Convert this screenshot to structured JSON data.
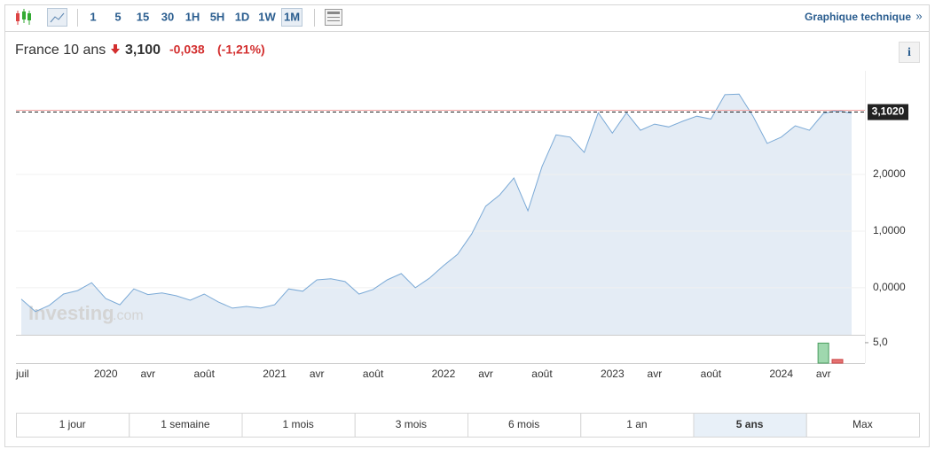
{
  "toolbar": {
    "intervals": [
      "1",
      "5",
      "15",
      "30",
      "1H",
      "5H",
      "1D",
      "1W",
      "1M"
    ],
    "selected": 8,
    "link": "Graphique technique"
  },
  "header": {
    "name": "France 10 ans",
    "price": "3,100",
    "change": "-0,038",
    "change_percent": "(-1,21%)"
  },
  "chart_data": {
    "type": "area",
    "categories": [
      "juil",
      null,
      null,
      null,
      null,
      null,
      "2020",
      null,
      null,
      "avr",
      null,
      null,
      null,
      "août",
      null,
      null,
      null,
      null,
      "2021",
      null,
      null,
      "avr",
      null,
      null,
      null,
      "août",
      null,
      null,
      null,
      null,
      "2022",
      null,
      null,
      "avr",
      null,
      null,
      null,
      "août",
      null,
      null,
      null,
      null,
      "2023",
      null,
      null,
      "avr",
      null,
      null,
      null,
      "août",
      null,
      null,
      null,
      null,
      "2024",
      null,
      null,
      "avr",
      null,
      null
    ],
    "values": [
      -0.2,
      -0.42,
      -0.31,
      -0.11,
      -0.05,
      0.09,
      -0.19,
      -0.3,
      -0.02,
      -0.12,
      -0.09,
      -0.14,
      -0.22,
      -0.11,
      -0.25,
      -0.36,
      -0.33,
      -0.36,
      -0.3,
      -0.02,
      -0.06,
      0.14,
      0.16,
      0.11,
      -0.11,
      -0.03,
      0.14,
      0.25,
      0.0,
      0.17,
      0.39,
      0.59,
      0.95,
      1.44,
      1.64,
      1.94,
      1.36,
      2.14,
      2.7,
      2.66,
      2.39,
      3.09,
      2.73,
      3.09,
      2.78,
      2.89,
      2.84,
      2.94,
      3.03,
      2.98,
      3.41,
      3.42,
      3.03,
      2.55,
      2.66,
      2.86,
      2.78,
      3.08,
      3.13,
      3.08
    ],
    "color": "#7aa9d6",
    "fill": "#e4ecf5",
    "ylim": [
      -0.83,
      3.83
    ],
    "yticks": [
      {
        "value": 0,
        "label": "0,0000"
      },
      {
        "value": 1,
        "label": "1,0000"
      },
      {
        "value": 2,
        "label": "2,0000"
      }
    ],
    "last_price": {
      "value": 3.102,
      "label": "3,1020"
    },
    "volume": {
      "values": [
        4.9,
        0.9
      ],
      "colors": [
        "#9fd8ae",
        "#e57373"
      ],
      "ylim": [
        0,
        6.5
      ],
      "yticks": [
        {
          "value": 5,
          "label": "5,0"
        }
      ]
    }
  },
  "watermark": {
    "brand": "Investing",
    "suffix": ".com"
  },
  "ranges": {
    "options": [
      "1 jour",
      "1 semaine",
      "1 mois",
      "3 mois",
      "6 mois",
      "1 an",
      "5 ans",
      "Max"
    ],
    "selected": 6
  }
}
